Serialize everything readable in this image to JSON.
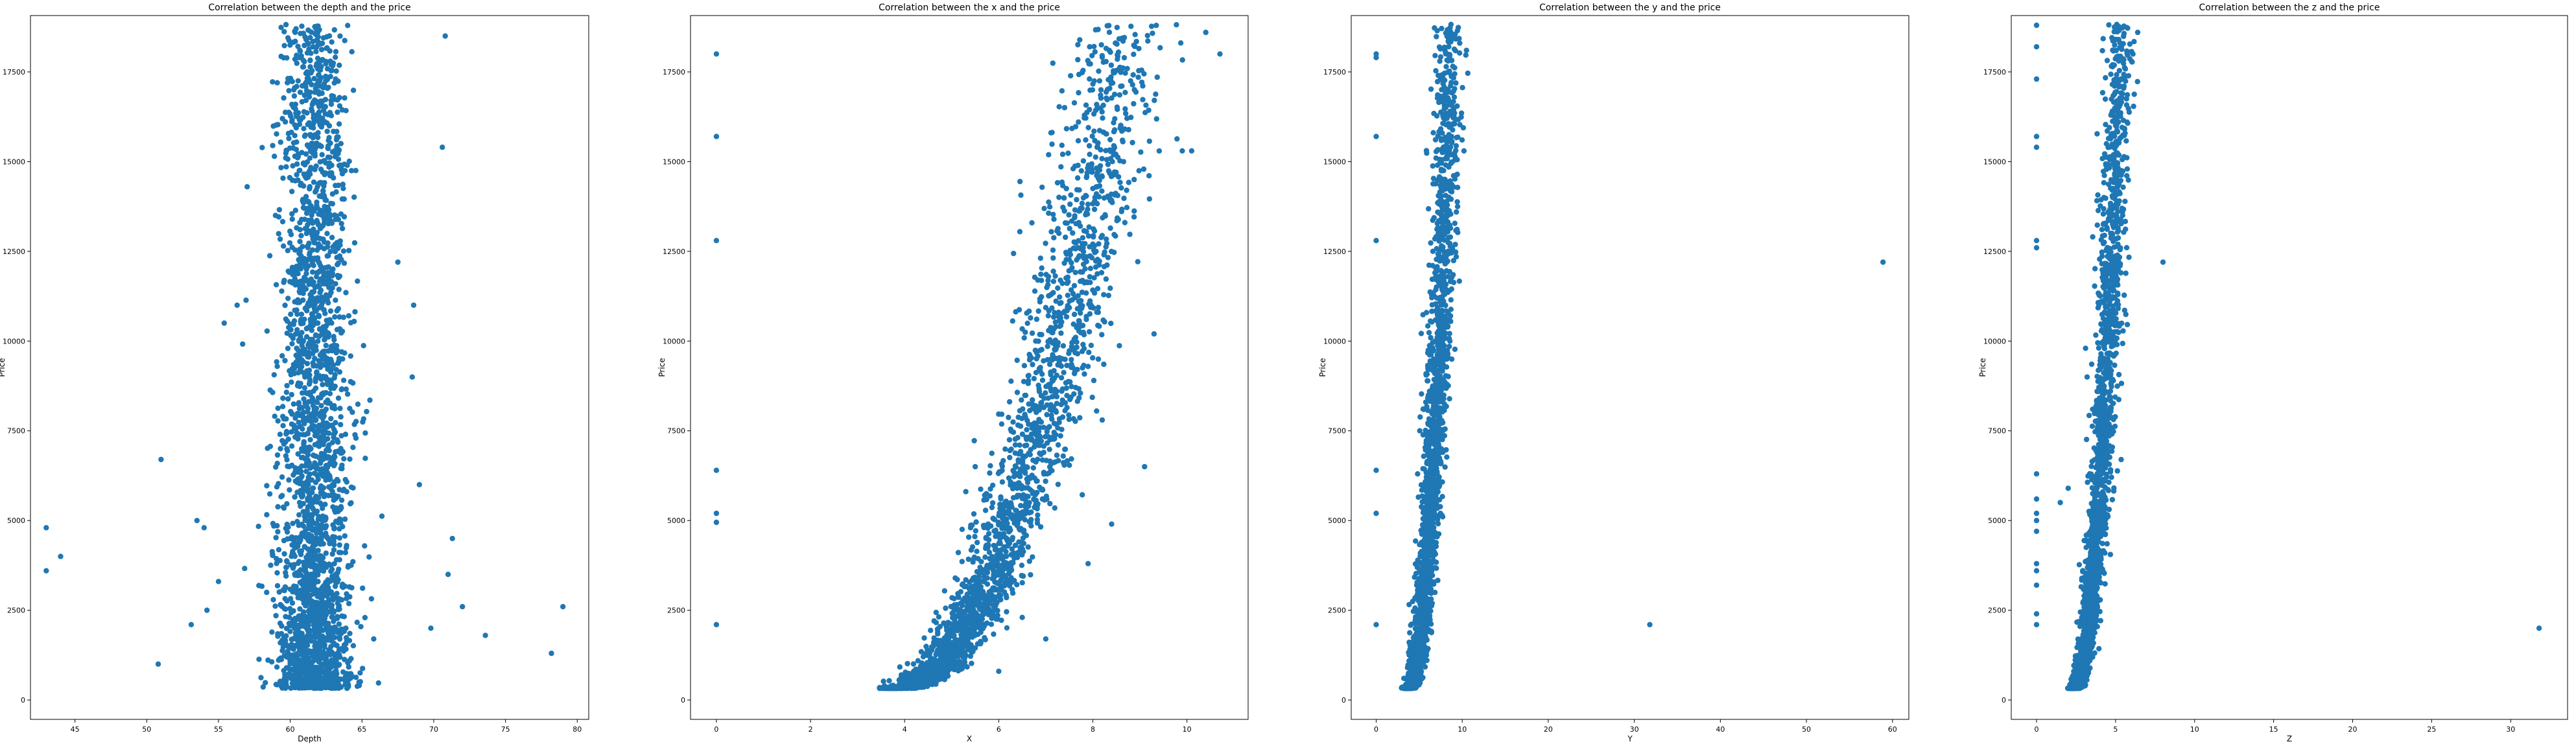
{
  "colors": {
    "marker": "#1f77b4",
    "axes": "#000000",
    "background": "#ffffff"
  },
  "chart_data": [
    {
      "type": "scatter",
      "title": "Correlation between the depth and the price",
      "xlabel": "Depth",
      "ylabel": "Price",
      "xlim": [
        41.9,
        80.8
      ],
      "ylim": [
        -540,
        19070
      ],
      "xticks": [
        45,
        50,
        55,
        60,
        65,
        70,
        75,
        80
      ],
      "yticks": [
        0,
        2500,
        5000,
        7500,
        10000,
        12500,
        15000,
        17500
      ],
      "grid": false,
      "legend": "none",
      "outliers": [
        [
          43.0,
          4800
        ],
        [
          43.0,
          3600
        ],
        [
          44.0,
          4000
        ],
        [
          51.0,
          6700
        ],
        [
          50.8,
          1000
        ],
        [
          53.1,
          2100
        ],
        [
          54.2,
          2500
        ],
        [
          53.5,
          5000
        ],
        [
          54.0,
          4800
        ],
        [
          55.0,
          3300
        ],
        [
          57.0,
          14300
        ],
        [
          56.3,
          11000
        ],
        [
          55.4,
          10500
        ],
        [
          67.5,
          12200
        ],
        [
          68.6,
          11000
        ],
        [
          70.6,
          15400
        ],
        [
          70.8,
          18500
        ],
        [
          69.8,
          2000
        ],
        [
          71.0,
          3500
        ],
        [
          71.3,
          4500
        ],
        [
          72.0,
          2600
        ],
        [
          73.6,
          1800
        ],
        [
          78.2,
          1300
        ],
        [
          79.0,
          2600
        ],
        [
          69.0,
          6000
        ],
        [
          68.5,
          9000
        ]
      ],
      "cloud": {
        "x_center": 61.7,
        "x_spread_low_price": 1.3,
        "x_spread_high_price": 1.1,
        "y_range": [
          326,
          18823
        ]
      }
    },
    {
      "type": "scatter",
      "title": "Correlation between the x and the price",
      "xlabel": "X",
      "ylabel": "Price",
      "xlim": [
        -0.55,
        11.3
      ],
      "ylim": [
        -540,
        19070
      ],
      "xticks": [
        0,
        2,
        4,
        6,
        8,
        10
      ],
      "yticks": [
        0,
        2500,
        5000,
        7500,
        10000,
        12500,
        15000,
        17500
      ],
      "grid": false,
      "legend": "none",
      "outliers": [
        [
          0,
          18000
        ],
        [
          0,
          15700
        ],
        [
          0,
          12800
        ],
        [
          0,
          6400
        ],
        [
          0,
          5200
        ],
        [
          0,
          4950
        ],
        [
          0,
          2100
        ],
        [
          10.7,
          18000
        ],
        [
          10.1,
          15300
        ],
        [
          9.9,
          15300
        ],
        [
          10.4,
          18600
        ],
        [
          9.3,
          10200
        ],
        [
          9.1,
          6500
        ],
        [
          8.2,
          7800
        ],
        [
          7.9,
          3800
        ],
        [
          7.0,
          1700
        ],
        [
          6.5,
          2300
        ],
        [
          6.0,
          800
        ],
        [
          5.5,
          6500
        ],
        [
          8.4,
          4900
        ]
      ],
      "curve": {
        "x_start": 3.73,
        "x_end": 8.6,
        "price_at_start": 326,
        "price_at_end": 18823,
        "x_spread": 0.35
      }
    },
    {
      "type": "scatter",
      "title": "Correlation between the y and the price",
      "xlabel": "Y",
      "ylabel": "Price",
      "xlim": [
        -2.9,
        61.9
      ],
      "ylim": [
        -540,
        19070
      ],
      "xticks": [
        0,
        10,
        20,
        30,
        40,
        50,
        60
      ],
      "yticks": [
        0,
        2500,
        5000,
        7500,
        10000,
        12500,
        15000,
        17500
      ],
      "grid": false,
      "legend": "none",
      "outliers": [
        [
          0,
          18000
        ],
        [
          0,
          17900
        ],
        [
          0,
          15700
        ],
        [
          0,
          12800
        ],
        [
          0,
          6400
        ],
        [
          0,
          5200
        ],
        [
          0,
          2100
        ],
        [
          58.9,
          12200
        ],
        [
          31.8,
          2100
        ],
        [
          10.5,
          18100
        ],
        [
          10.2,
          15300
        ]
      ],
      "curve": {
        "x_start": 3.7,
        "x_end": 8.6,
        "price_at_start": 326,
        "price_at_end": 18823,
        "x_spread": 0.55
      }
    },
    {
      "type": "scatter",
      "title": "Correlation between the z and the price",
      "xlabel": "Z",
      "ylabel": "Price",
      "xlim": [
        -1.6,
        33.6
      ],
      "ylim": [
        -540,
        19070
      ],
      "xticks": [
        0,
        5,
        10,
        15,
        20,
        25,
        30
      ],
      "yticks": [
        0,
        2500,
        5000,
        7500,
        10000,
        12500,
        15000,
        17500
      ],
      "grid": false,
      "legend": "none",
      "outliers": [
        [
          0,
          18800
        ],
        [
          0,
          18200
        ],
        [
          0,
          17300
        ],
        [
          0,
          15700
        ],
        [
          0,
          15400
        ],
        [
          0,
          12800
        ],
        [
          0,
          12600
        ],
        [
          0,
          6300
        ],
        [
          0,
          5600
        ],
        [
          0,
          5200
        ],
        [
          0,
          5000
        ],
        [
          0,
          4700
        ],
        [
          0,
          3800
        ],
        [
          0,
          3600
        ],
        [
          0,
          3200
        ],
        [
          0,
          2400
        ],
        [
          0,
          2100
        ],
        [
          31.8,
          2000
        ],
        [
          8.0,
          12200
        ],
        [
          3.1,
          9800
        ],
        [
          3.2,
          9000
        ],
        [
          2.0,
          5900
        ],
        [
          1.5,
          5500
        ],
        [
          6.4,
          18600
        ],
        [
          6.1,
          18000
        ]
      ],
      "curve": {
        "x_start": 2.3,
        "x_end": 5.3,
        "price_at_start": 326,
        "price_at_end": 18823,
        "x_spread": 0.3
      }
    }
  ]
}
